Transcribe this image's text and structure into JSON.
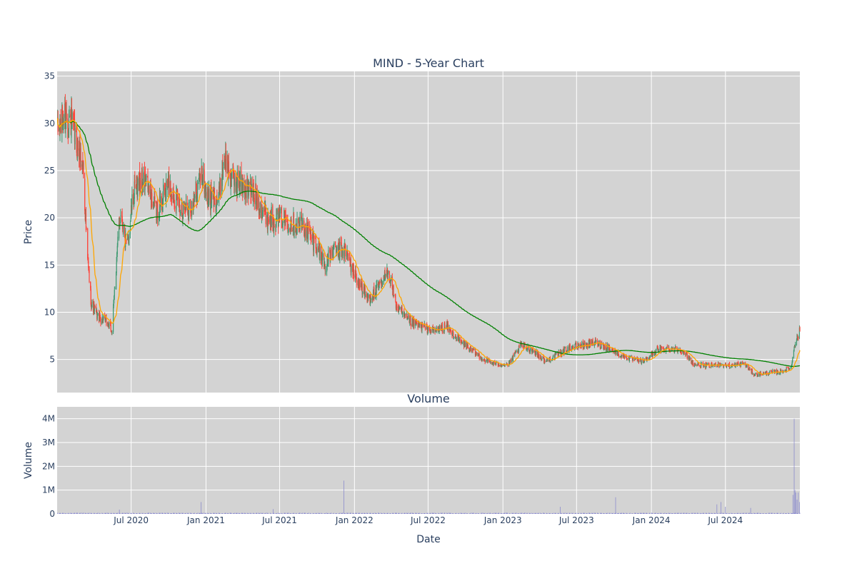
{
  "chart_data": [
    {
      "type": "candlestick",
      "title": "MIND - 5-Year Chart",
      "xlabel": "",
      "ylabel": "Price",
      "ylim": [
        1.5,
        35.5
      ],
      "yticks": [
        5,
        10,
        15,
        20,
        25,
        30,
        35
      ],
      "xlim": [
        "2020-01-01",
        "2024-12-31"
      ],
      "grid": true,
      "colors": {
        "plot_bg": "#d3d3d3",
        "increasing": "#3d9970",
        "decreasing": "#ff4136",
        "sma_short": "#ffa500",
        "sma_long": "#008000",
        "grid": "#ffffff",
        "text": "#2a3f5f"
      },
      "anchors": [
        [
          "2020-01-02",
          29.0
        ],
        [
          "2020-01-20",
          31.0
        ],
        [
          "2020-02-05",
          30.0
        ],
        [
          "2020-02-20",
          27.5
        ],
        [
          "2020-03-05",
          25.5
        ],
        [
          "2020-03-15",
          16.0
        ],
        [
          "2020-03-25",
          11.0
        ],
        [
          "2020-04-10",
          9.5
        ],
        [
          "2020-05-01",
          9.0
        ],
        [
          "2020-05-15",
          8.0
        ],
        [
          "2020-05-25",
          15.0
        ],
        [
          "2020-06-05",
          21.0
        ],
        [
          "2020-06-20",
          16.5
        ],
        [
          "2020-07-05",
          22.0
        ],
        [
          "2020-07-20",
          24.0
        ],
        [
          "2020-08-10",
          23.5
        ],
        [
          "2020-09-01",
          20.5
        ],
        [
          "2020-10-01",
          23.5
        ],
        [
          "2020-11-01",
          21.0
        ],
        [
          "2020-12-01",
          21.5
        ],
        [
          "2020-12-20",
          25.0
        ],
        [
          "2021-01-05",
          22.0
        ],
        [
          "2021-02-01",
          22.0
        ],
        [
          "2021-02-15",
          26.5
        ],
        [
          "2021-03-05",
          24.0
        ],
        [
          "2021-04-01",
          23.5
        ],
        [
          "2021-05-01",
          22.5
        ],
        [
          "2021-06-01",
          20.0
        ],
        [
          "2021-07-01",
          20.0
        ],
        [
          "2021-08-01",
          19.5
        ],
        [
          "2021-09-01",
          19.0
        ],
        [
          "2021-10-01",
          17.0
        ],
        [
          "2021-10-20",
          15.0
        ],
        [
          "2021-11-10",
          16.5
        ],
        [
          "2021-12-10",
          16.5
        ],
        [
          "2022-01-01",
          14.0
        ],
        [
          "2022-02-01",
          11.5
        ],
        [
          "2022-02-20",
          12.0
        ],
        [
          "2022-03-10",
          13.0
        ],
        [
          "2022-03-25",
          14.5
        ],
        [
          "2022-04-15",
          10.5
        ],
        [
          "2022-05-15",
          9.0
        ],
        [
          "2022-06-15",
          8.5
        ],
        [
          "2022-07-15",
          8.0
        ],
        [
          "2022-08-15",
          8.5
        ],
        [
          "2022-09-15",
          7.0
        ],
        [
          "2022-10-15",
          6.0
        ],
        [
          "2022-11-15",
          5.0
        ],
        [
          "2022-12-15",
          4.5
        ],
        [
          "2023-01-15",
          4.5
        ],
        [
          "2023-02-15",
          6.5
        ],
        [
          "2023-03-15",
          6.0
        ],
        [
          "2023-04-15",
          4.8
        ],
        [
          "2023-05-15",
          5.5
        ],
        [
          "2023-06-15",
          6.3
        ],
        [
          "2023-07-15",
          6.5
        ],
        [
          "2023-08-15",
          6.8
        ],
        [
          "2023-09-15",
          6.3
        ],
        [
          "2023-10-15",
          5.5
        ],
        [
          "2023-11-15",
          5.0
        ],
        [
          "2023-12-15",
          4.8
        ],
        [
          "2024-01-15",
          6.0
        ],
        [
          "2024-02-15",
          6.2
        ],
        [
          "2024-03-15",
          6.0
        ],
        [
          "2024-04-15",
          4.5
        ],
        [
          "2024-05-15",
          4.3
        ],
        [
          "2024-06-15",
          4.5
        ],
        [
          "2024-07-15",
          4.3
        ],
        [
          "2024-08-15",
          4.6
        ],
        [
          "2024-09-10",
          3.4
        ],
        [
          "2024-10-15",
          3.6
        ],
        [
          "2024-11-15",
          3.7
        ],
        [
          "2024-12-10",
          4.2
        ],
        [
          "2024-12-17",
          6.5
        ],
        [
          "2024-12-31",
          8.0
        ]
      ]
    },
    {
      "type": "bar",
      "title": "Volume",
      "xlabel": "Date",
      "ylabel": "Volume",
      "ylim": [
        0,
        4500000
      ],
      "yticks": [
        0,
        1000000,
        2000000,
        3000000,
        4000000
      ],
      "ytick_labels": [
        "0",
        "1M",
        "2M",
        "3M",
        "4M"
      ],
      "xticks": [
        "2020-07-01",
        "2021-01-01",
        "2021-07-01",
        "2022-01-01",
        "2022-07-01",
        "2023-01-01",
        "2023-07-01",
        "2024-01-01",
        "2024-07-01"
      ],
      "xtick_labels": [
        "Jul 2020",
        "Jan 2021",
        "Jul 2021",
        "Jan 2022",
        "Jul 2022",
        "Jan 2023",
        "Jul 2023",
        "Jan 2024",
        "Jul 2024"
      ],
      "bar_color": "#7f7fcc",
      "baseline_volume": 30000,
      "spikes": [
        [
          "2020-06-02",
          180000
        ],
        [
          "2020-12-20",
          500000
        ],
        [
          "2021-06-15",
          200000
        ],
        [
          "2021-12-06",
          1400000
        ],
        [
          "2023-05-22",
          300000
        ],
        [
          "2023-10-05",
          700000
        ],
        [
          "2024-06-10",
          400000
        ],
        [
          "2024-06-20",
          500000
        ],
        [
          "2024-07-01",
          300000
        ],
        [
          "2024-09-01",
          250000
        ],
        [
          "2024-12-14",
          800000
        ],
        [
          "2024-12-17",
          4000000
        ],
        [
          "2024-12-19",
          1000000
        ],
        [
          "2024-12-21",
          900000
        ],
        [
          "2024-12-24",
          600000
        ],
        [
          "2024-12-27",
          900000
        ],
        [
          "2024-12-30",
          500000
        ]
      ]
    }
  ]
}
